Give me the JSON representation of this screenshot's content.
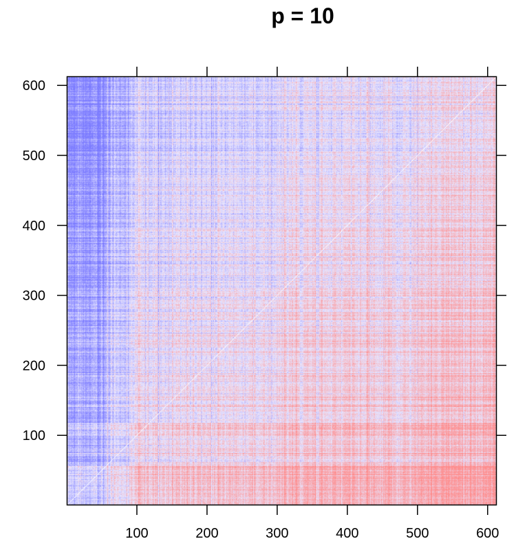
{
  "chart_data": {
    "type": "heatmap",
    "title": "p = 10",
    "xlabel": "",
    "ylabel": "",
    "xlim": [
      1,
      612
    ],
    "ylim": [
      1,
      612
    ],
    "x_ticks": [
      100,
      200,
      300,
      400,
      500,
      600
    ],
    "y_ticks": [
      100,
      200,
      300,
      400,
      500,
      600
    ],
    "n": 612,
    "grid": false,
    "color_scale": {
      "low": "#7c7cff",
      "mid": "#e8e6ff",
      "high": "#ff8c8c",
      "diagonal": "#ffffff"
    },
    "row_effects": [
      {
        "from": 1,
        "to": 10,
        "value": 0.55
      },
      {
        "from": 11,
        "to": 55,
        "value": 0.75
      },
      {
        "from": 56,
        "to": 95,
        "value": 0.2
      },
      {
        "from": 96,
        "to": 115,
        "value": 0.45
      },
      {
        "from": 116,
        "to": 300,
        "value": 0.0
      },
      {
        "from": 301,
        "to": 400,
        "value": -0.25
      },
      {
        "from": 401,
        "to": 500,
        "value": -0.45
      },
      {
        "from": 501,
        "to": 612,
        "value": -0.6
      }
    ],
    "col_effects": [
      {
        "from": 1,
        "to": 55,
        "value": -1.3
      },
      {
        "from": 56,
        "to": 100,
        "value": -0.45
      },
      {
        "from": 101,
        "to": 300,
        "value": 0.25
      },
      {
        "from": 301,
        "to": 500,
        "value": 0.55
      },
      {
        "from": 501,
        "to": 612,
        "value": 0.9
      }
    ]
  }
}
